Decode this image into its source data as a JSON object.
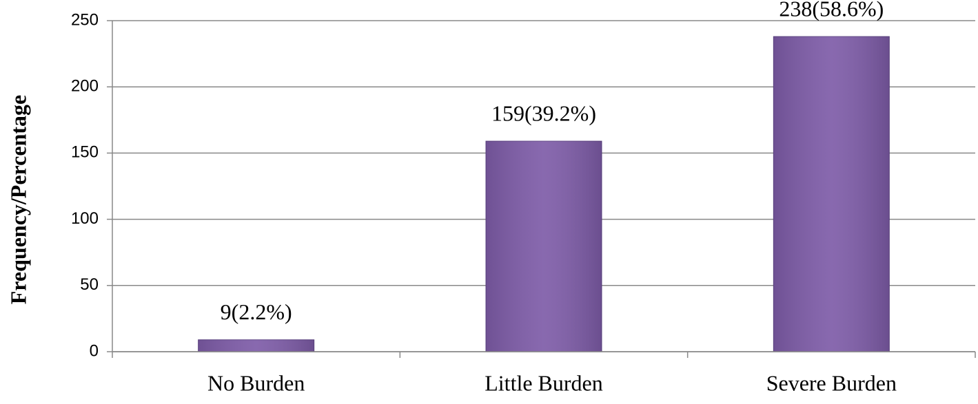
{
  "chart_data": {
    "type": "bar",
    "y_label": "Frequency/Percentage",
    "categories": [
      "No Burden",
      "Little Burden",
      "Severe Burden"
    ],
    "values": [
      9,
      159,
      238
    ],
    "value_labels": [
      "9(2.2%)",
      "159(39.2%)",
      "238(58.6%)"
    ],
    "color": "#7e5ca8",
    "ylim": [
      0,
      250
    ],
    "yticks": [
      0,
      50,
      100,
      150,
      200,
      250
    ],
    "grid": true
  }
}
